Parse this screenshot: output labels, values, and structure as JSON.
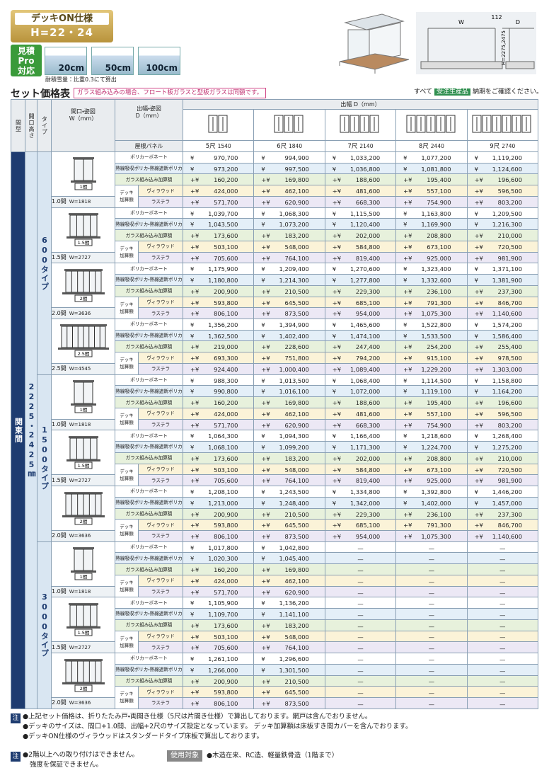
{
  "header": {
    "badge_title": "デッキON仕様",
    "badge_sub": "H=22・24",
    "pro": [
      "見積",
      "Pro",
      "対応"
    ],
    "snow": [
      "20cm",
      "50cm",
      "100cm"
    ],
    "snow_note": "耐積雪量：比重0.3にて算出"
  },
  "diagram": {
    "w": "W",
    "gap": "112",
    "d": "D",
    "h": "H=2275,2475"
  },
  "title": "セット価格表",
  "note": "ガラス組み込みの場合、フロート板ガラスと型板ガラスは同額です。",
  "avail": {
    "pre": "すべて",
    "tag": "受注生産品",
    "post": "納期をご確認ください。"
  },
  "table": {
    "head": {
      "magata": "間型",
      "kaiko": "開口高さ",
      "type": "タイプ",
      "maguchi": [
        "間口・姿図",
        "W（mm）"
      ],
      "dehaba": [
        "出幅・姿図",
        "D（mm）"
      ],
      "roof": "屋根パネル",
      "dehaba_top": "出幅 D（mm）"
    },
    "columns": [
      {
        "shaku": "5尺",
        "mm": "1540"
      },
      {
        "shaku": "6尺",
        "mm": "1840"
      },
      {
        "shaku": "7尺",
        "mm": "2140"
      },
      {
        "shaku": "8尺",
        "mm": "2440"
      },
      {
        "shaku": "9尺",
        "mm": "2740"
      }
    ],
    "row_labels": [
      {
        "label": "ポリカーボネート",
        "prefix": "¥"
      },
      {
        "label": "熱線吸収ポリカ・熱線遮断ポリカ",
        "prefix": "¥"
      },
      {
        "label": "ガラス組み込み加算額",
        "prefix": "+¥"
      },
      {
        "label": "ヴィラウッド",
        "prefix": "+¥"
      },
      {
        "label": "ラステラ",
        "prefix": "+¥"
      }
    ],
    "deck_label": [
      "デッキ",
      "加算額"
    ],
    "dash": "—",
    "side": {
      "magata": "関東間",
      "height": "2225・2425㎜"
    },
    "types": [
      {
        "name": "600タイプ",
        "groups": [
          {
            "ken": "1.0間",
            "w": "W=1818",
            "fig": "1間",
            "cells": [
              [
                "970,700",
                "994,900",
                "1,033,200",
                "1,077,200",
                "1,119,200"
              ],
              [
                "973,200",
                "997,500",
                "1,036,800",
                "1,081,800",
                "1,124,600"
              ],
              [
                "160,200",
                "169,800",
                "188,600",
                "195,400",
                "196,600"
              ],
              [
                "424,000",
                "462,100",
                "481,600",
                "557,100",
                "596,500"
              ],
              [
                "571,700",
                "620,900",
                "668,300",
                "754,900",
                "803,200"
              ]
            ]
          },
          {
            "ken": "1.5間",
            "w": "W=2727",
            "fig": "1.5間",
            "cells": [
              [
                "1,039,700",
                "1,068,300",
                "1,115,500",
                "1,163,800",
                "1,209,500"
              ],
              [
                "1,043,500",
                "1,073,200",
                "1,120,400",
                "1,169,900",
                "1,216,300"
              ],
              [
                "173,600",
                "183,200",
                "202,000",
                "208,800",
                "210,000"
              ],
              [
                "503,100",
                "548,000",
                "584,800",
                "673,100",
                "720,500"
              ],
              [
                "705,600",
                "764,100",
                "819,400",
                "925,000",
                "981,900"
              ]
            ]
          },
          {
            "ken": "2.0間",
            "w": "W=3636",
            "fig": "2間",
            "cells": [
              [
                "1,175,900",
                "1,209,400",
                "1,270,600",
                "1,323,400",
                "1,371,100"
              ],
              [
                "1,180,800",
                "1,214,300",
                "1,277,800",
                "1,332,600",
                "1,381,900"
              ],
              [
                "200,900",
                "210,500",
                "229,300",
                "236,100",
                "237,300"
              ],
              [
                "593,800",
                "645,500",
                "685,100",
                "791,300",
                "846,700"
              ],
              [
                "806,100",
                "873,500",
                "954,000",
                "1,075,300",
                "1,140,600"
              ]
            ]
          },
          {
            "ken": "2.5間",
            "w": "W=4545",
            "fig": "2.5間",
            "cells": [
              [
                "1,356,200",
                "1,394,900",
                "1,465,600",
                "1,522,800",
                "1,574,200"
              ],
              [
                "1,362,500",
                "1,402,400",
                "1,474,100",
                "1,533,500",
                "1,586,400"
              ],
              [
                "219,000",
                "228,600",
                "247,400",
                "254,200",
                "255,400"
              ],
              [
                "693,300",
                "751,800",
                "794,200",
                "915,100",
                "978,500"
              ],
              [
                "924,400",
                "1,000,400",
                "1,089,400",
                "1,229,200",
                "1,303,000"
              ]
            ]
          }
        ]
      },
      {
        "name": "1500タイプ",
        "groups": [
          {
            "ken": "1.0間",
            "w": "W=1818",
            "fig": "1間",
            "cells": [
              [
                "988,300",
                "1,013,500",
                "1,068,400",
                "1,114,500",
                "1,158,800"
              ],
              [
                "990,800",
                "1,016,100",
                "1,072,000",
                "1,119,100",
                "1,164,200"
              ],
              [
                "160,200",
                "169,800",
                "188,600",
                "195,400",
                "196,600"
              ],
              [
                "424,000",
                "462,100",
                "481,600",
                "557,100",
                "596,500"
              ],
              [
                "571,700",
                "620,900",
                "668,300",
                "754,900",
                "803,200"
              ]
            ]
          },
          {
            "ken": "1.5間",
            "w": "W=2727",
            "fig": "1.5間",
            "cells": [
              [
                "1,064,300",
                "1,094,300",
                "1,166,400",
                "1,218,600",
                "1,268,400"
              ],
              [
                "1,068,100",
                "1,099,200",
                "1,171,300",
                "1,224,700",
                "1,275,200"
              ],
              [
                "173,600",
                "183,200",
                "202,000",
                "208,800",
                "210,000"
              ],
              [
                "503,100",
                "548,000",
                "584,800",
                "673,100",
                "720,500"
              ],
              [
                "705,600",
                "764,100",
                "819,400",
                "925,000",
                "981,900"
              ]
            ]
          },
          {
            "ken": "2.0間",
            "w": "W=3636",
            "fig": "2間",
            "cells": [
              [
                "1,208,100",
                "1,243,500",
                "1,334,800",
                "1,392,800",
                "1,446,200"
              ],
              [
                "1,213,000",
                "1,248,400",
                "1,342,000",
                "1,402,000",
                "1,457,000"
              ],
              [
                "200,900",
                "210,500",
                "229,300",
                "236,100",
                "237,300"
              ],
              [
                "593,800",
                "645,500",
                "685,100",
                "791,300",
                "846,700"
              ],
              [
                "806,100",
                "873,500",
                "954,000",
                "1,075,300",
                "1,140,600"
              ]
            ]
          }
        ]
      },
      {
        "name": "3000タイプ",
        "groups": [
          {
            "ken": "1.0間",
            "w": "W=1818",
            "fig": "1間",
            "cells": [
              [
                "1,017,800",
                "1,042,800",
                null,
                null,
                null
              ],
              [
                "1,020,300",
                "1,045,400",
                null,
                null,
                null
              ],
              [
                "160,200",
                "169,800",
                null,
                null,
                null
              ],
              [
                "424,000",
                "462,100",
                null,
                null,
                null
              ],
              [
                "571,700",
                "620,900",
                null,
                null,
                null
              ]
            ]
          },
          {
            "ken": "1.5間",
            "w": "W=2727",
            "fig": "1.5間",
            "cells": [
              [
                "1,105,900",
                "1,136,200",
                null,
                null,
                null
              ],
              [
                "1,109,700",
                "1,141,100",
                null,
                null,
                null
              ],
              [
                "173,600",
                "183,200",
                null,
                null,
                null
              ],
              [
                "503,100",
                "548,000",
                null,
                null,
                null
              ],
              [
                "705,600",
                "764,100",
                null,
                null,
                null
              ]
            ]
          },
          {
            "ken": "2.0間",
            "w": "W=3636",
            "fig": "2間",
            "cells": [
              [
                "1,261,100",
                "1,296,600",
                null,
                null,
                null
              ],
              [
                "1,266,000",
                "1,301,500",
                null,
                null,
                null
              ],
              [
                "200,900",
                "210,500",
                null,
                null,
                null
              ],
              [
                "593,800",
                "645,500",
                null,
                null,
                null
              ],
              [
                "806,100",
                "873,500",
                null,
                null,
                null
              ]
            ]
          }
        ]
      }
    ]
  },
  "notes_tag": "注",
  "notes": [
    "●上記セット価格は、折りたたみ戸・両開き仕様（5尺は片開き仕様）で算出しております。網戸は含んでおりません。",
    "●デッキのサイズは、間口+1.0間、出幅+2尺のサイズ設定となっています。 デッキ加算額は床板すき間カバーを含んでおります。",
    "●デッキON仕様のヴィラウッドはスタンダードタイプ床板で算出しております。"
  ],
  "notes2": [
    "●2階以上への取り付けはできません。",
    "強度を保証できません。"
  ],
  "usage": {
    "tag": "使用対象",
    "text": "●木造在来、RC造、軽量鉄骨造（1階まで）"
  }
}
